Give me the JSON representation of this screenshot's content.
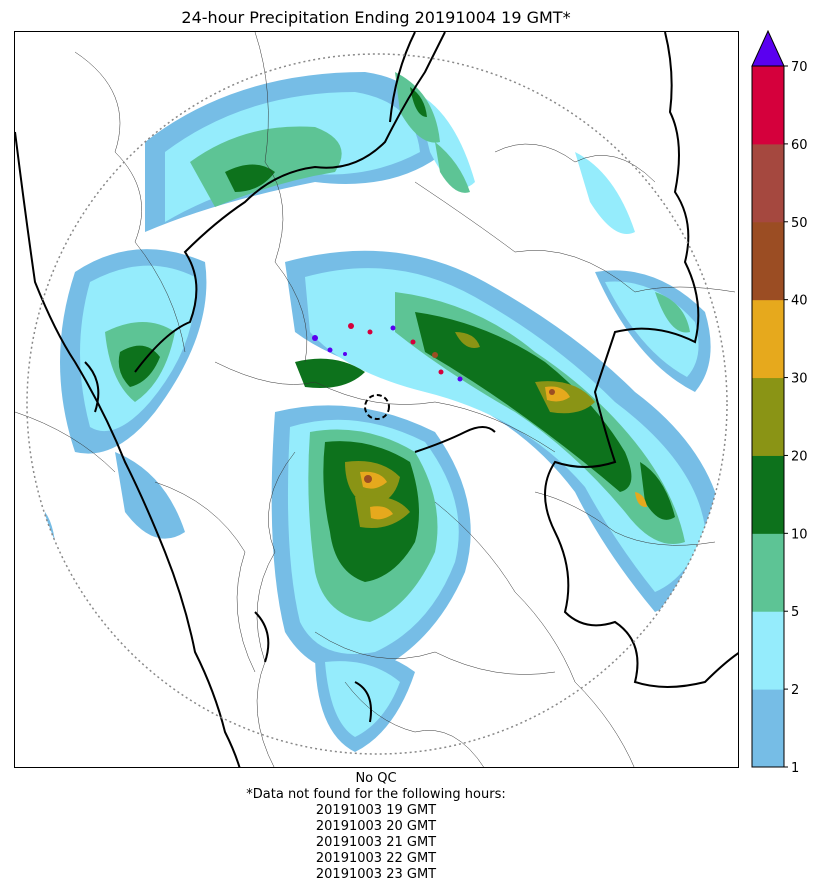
{
  "title": "24-hour Precipitation Ending 20191004 19 GMT*",
  "colorbar": {
    "ticks": [
      1,
      2,
      5,
      10,
      20,
      30,
      40,
      50,
      60,
      70
    ],
    "bins": [
      {
        "from": 1,
        "to": 2,
        "color": "#76bde6"
      },
      {
        "from": 2,
        "to": 5,
        "color": "#95ecfc"
      },
      {
        "from": 5,
        "to": 10,
        "color": "#5dc495"
      },
      {
        "from": 10,
        "to": 20,
        "color": "#0d721c"
      },
      {
        "from": 20,
        "to": 30,
        "color": "#8a9415"
      },
      {
        "from": 30,
        "to": 40,
        "color": "#e6a91d"
      },
      {
        "from": 40,
        "to": 50,
        "color": "#9b4d23"
      },
      {
        "from": 50,
        "to": 60,
        "color": "#a5483f"
      },
      {
        "from": 60,
        "to": 70,
        "color": "#d5003c"
      }
    ],
    "extend_color": "#5a00f0"
  },
  "footer": {
    "qc": "No QC",
    "missing_header": "*Data not found for the following hours:",
    "missing_hours": [
      "20191003 19 GMT",
      "20191003 20 GMT",
      "20191003 21 GMT",
      "20191003 22 GMT",
      "20191003 23 GMT"
    ]
  }
}
